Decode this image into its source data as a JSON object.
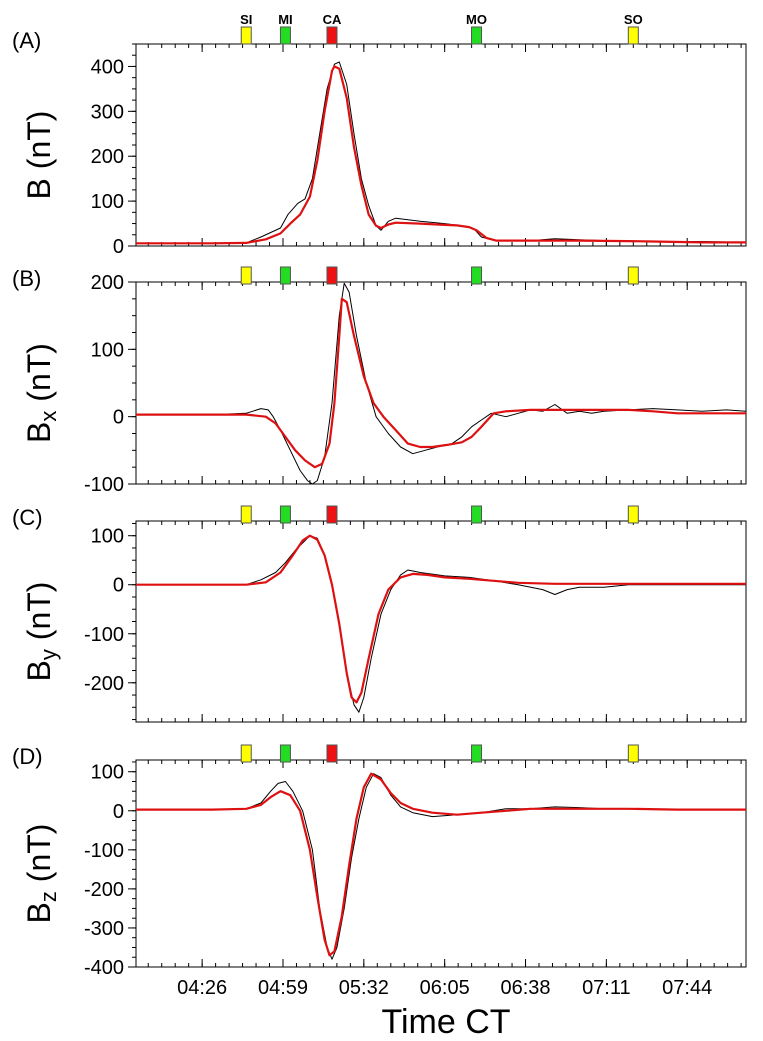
{
  "chart_data": {
    "type": "line",
    "xlabel": "Time CT",
    "x_tick_labels": [
      "04:26",
      "04:59",
      "05:32",
      "06:05",
      "06:38",
      "07:11",
      "07:44"
    ],
    "x_tick_minutes": [
      266,
      299,
      332,
      365,
      398,
      431,
      464
    ],
    "xlim_minutes": [
      239,
      488
    ],
    "markers": [
      {
        "label": "SI",
        "time_min": 284,
        "color": "#ffff00"
      },
      {
        "label": "MI",
        "time_min": 300,
        "color": "#22dd22"
      },
      {
        "label": "CA",
        "time_min": 319,
        "color": "#ee1111"
      },
      {
        "label": "MO",
        "time_min": 378,
        "color": "#22dd22"
      },
      {
        "label": "SO",
        "time_min": 442,
        "color": "#ffff00"
      }
    ],
    "series_styles": {
      "observed": "#000000",
      "model": "#dd1111"
    },
    "panels": [
      {
        "letter": "(A)",
        "ylabel_main": "B",
        "ylabel_sub": "",
        "ylabel_unit": " (nT)",
        "ylim": [
          0,
          450
        ],
        "yticks": [
          0,
          100,
          200,
          300,
          400
        ],
        "y_tick_labels": [
          "0",
          "100",
          "200",
          "300",
          "400"
        ],
        "observed": [
          [
            239,
            6
          ],
          [
            270,
            6
          ],
          [
            284,
            7
          ],
          [
            290,
            20
          ],
          [
            298,
            40
          ],
          [
            301,
            70
          ],
          [
            305,
            95
          ],
          [
            308,
            105
          ],
          [
            311,
            150
          ],
          [
            314,
            250
          ],
          [
            317,
            350
          ],
          [
            320,
            405
          ],
          [
            322,
            410
          ],
          [
            325,
            360
          ],
          [
            328,
            250
          ],
          [
            331,
            150
          ],
          [
            334,
            90
          ],
          [
            337,
            45
          ],
          [
            339,
            35
          ],
          [
            342,
            55
          ],
          [
            345,
            62
          ],
          [
            355,
            55
          ],
          [
            365,
            50
          ],
          [
            372,
            45
          ],
          [
            377,
            38
          ],
          [
            380,
            20
          ],
          [
            385,
            13
          ],
          [
            400,
            12
          ],
          [
            410,
            16
          ],
          [
            420,
            14
          ],
          [
            430,
            12
          ],
          [
            440,
            11
          ],
          [
            450,
            10
          ],
          [
            470,
            10
          ],
          [
            488,
            8
          ]
        ],
        "model": [
          [
            239,
            6
          ],
          [
            270,
            6
          ],
          [
            284,
            7
          ],
          [
            292,
            15
          ],
          [
            298,
            28
          ],
          [
            302,
            50
          ],
          [
            306,
            70
          ],
          [
            310,
            110
          ],
          [
            313,
            190
          ],
          [
            316,
            300
          ],
          [
            319,
            390
          ],
          [
            320,
            400
          ],
          [
            322,
            395
          ],
          [
            325,
            330
          ],
          [
            328,
            220
          ],
          [
            331,
            135
          ],
          [
            334,
            70
          ],
          [
            337,
            45
          ],
          [
            339,
            40
          ],
          [
            342,
            48
          ],
          [
            345,
            52
          ],
          [
            355,
            50
          ],
          [
            365,
            47
          ],
          [
            370,
            46
          ],
          [
            375,
            42
          ],
          [
            378,
            35
          ],
          [
            382,
            18
          ],
          [
            386,
            12
          ],
          [
            400,
            12
          ],
          [
            420,
            12
          ],
          [
            440,
            11
          ],
          [
            450,
            10
          ],
          [
            470,
            8
          ],
          [
            488,
            8
          ]
        ]
      },
      {
        "letter": "(B)",
        "ylabel_main": "B",
        "ylabel_sub": "x",
        "ylabel_unit": " (nT)",
        "ylim": [
          -100,
          200
        ],
        "yticks": [
          -100,
          0,
          100,
          200
        ],
        "y_tick_labels": [
          "-100",
          "0",
          "100",
          "200"
        ],
        "observed": [
          [
            239,
            3
          ],
          [
            270,
            3
          ],
          [
            284,
            5
          ],
          [
            290,
            12
          ],
          [
            293,
            10
          ],
          [
            295,
            0
          ],
          [
            298,
            -20
          ],
          [
            302,
            -50
          ],
          [
            306,
            -80
          ],
          [
            309,
            -95
          ],
          [
            311,
            -100
          ],
          [
            313,
            -95
          ],
          [
            316,
            -60
          ],
          [
            319,
            20
          ],
          [
            322,
            150
          ],
          [
            324,
            198
          ],
          [
            326,
            185
          ],
          [
            329,
            120
          ],
          [
            333,
            50
          ],
          [
            337,
            0
          ],
          [
            342,
            -25
          ],
          [
            347,
            -45
          ],
          [
            352,
            -55
          ],
          [
            357,
            -50
          ],
          [
            362,
            -45
          ],
          [
            368,
            -40
          ],
          [
            372,
            -30
          ],
          [
            376,
            -15
          ],
          [
            380,
            -5
          ],
          [
            384,
            5
          ],
          [
            390,
            0
          ],
          [
            395,
            5
          ],
          [
            400,
            10
          ],
          [
            405,
            8
          ],
          [
            410,
            18
          ],
          [
            415,
            5
          ],
          [
            420,
            8
          ],
          [
            425,
            5
          ],
          [
            430,
            8
          ],
          [
            440,
            10
          ],
          [
            450,
            12
          ],
          [
            460,
            10
          ],
          [
            470,
            8
          ],
          [
            480,
            10
          ],
          [
            488,
            8
          ]
        ],
        "model": [
          [
            239,
            3
          ],
          [
            270,
            3
          ],
          [
            284,
            3
          ],
          [
            292,
            0
          ],
          [
            296,
            -10
          ],
          [
            300,
            -30
          ],
          [
            304,
            -50
          ],
          [
            308,
            -65
          ],
          [
            312,
            -75
          ],
          [
            315,
            -70
          ],
          [
            318,
            -40
          ],
          [
            320,
            20
          ],
          [
            322,
            120
          ],
          [
            323,
            175
          ],
          [
            325,
            170
          ],
          [
            328,
            120
          ],
          [
            332,
            60
          ],
          [
            336,
            20
          ],
          [
            340,
            0
          ],
          [
            345,
            -20
          ],
          [
            350,
            -40
          ],
          [
            355,
            -45
          ],
          [
            360,
            -45
          ],
          [
            366,
            -42
          ],
          [
            372,
            -38
          ],
          [
            376,
            -30
          ],
          [
            380,
            -15
          ],
          [
            385,
            5
          ],
          [
            390,
            8
          ],
          [
            400,
            10
          ],
          [
            420,
            10
          ],
          [
            440,
            10
          ],
          [
            450,
            8
          ],
          [
            460,
            5
          ],
          [
            488,
            5
          ]
        ]
      },
      {
        "letter": "(C)",
        "ylabel_main": "B",
        "ylabel_sub": "y",
        "ylabel_unit": " (nT)",
        "ylim": [
          -280,
          130
        ],
        "yticks": [
          -200,
          -100,
          0,
          100
        ],
        "y_tick_labels": [
          "-200",
          "-100",
          "0",
          "100"
        ],
        "observed": [
          [
            239,
            0
          ],
          [
            250,
            0
          ],
          [
            270,
            0
          ],
          [
            284,
            0
          ],
          [
            290,
            10
          ],
          [
            296,
            25
          ],
          [
            300,
            45
          ],
          [
            304,
            70
          ],
          [
            308,
            90
          ],
          [
            310,
            100
          ],
          [
            313,
            95
          ],
          [
            316,
            60
          ],
          [
            319,
            0
          ],
          [
            322,
            -80
          ],
          [
            325,
            -180
          ],
          [
            328,
            -245
          ],
          [
            330,
            -260
          ],
          [
            332,
            -230
          ],
          [
            335,
            -150
          ],
          [
            339,
            -60
          ],
          [
            343,
            -10
          ],
          [
            347,
            20
          ],
          [
            350,
            30
          ],
          [
            355,
            25
          ],
          [
            365,
            18
          ],
          [
            375,
            15
          ],
          [
            385,
            8
          ],
          [
            395,
            0
          ],
          [
            405,
            -10
          ],
          [
            410,
            -20
          ],
          [
            415,
            -10
          ],
          [
            420,
            -5
          ],
          [
            430,
            -5
          ],
          [
            440,
            0
          ],
          [
            460,
            0
          ],
          [
            488,
            0
          ]
        ],
        "model": [
          [
            239,
            0
          ],
          [
            270,
            0
          ],
          [
            284,
            0
          ],
          [
            292,
            5
          ],
          [
            298,
            25
          ],
          [
            303,
            60
          ],
          [
            307,
            90
          ],
          [
            310,
            100
          ],
          [
            313,
            92
          ],
          [
            316,
            60
          ],
          [
            319,
            0
          ],
          [
            322,
            -80
          ],
          [
            325,
            -180
          ],
          [
            327,
            -230
          ],
          [
            329,
            -240
          ],
          [
            331,
            -220
          ],
          [
            334,
            -150
          ],
          [
            338,
            -60
          ],
          [
            342,
            -10
          ],
          [
            347,
            15
          ],
          [
            352,
            22
          ],
          [
            358,
            20
          ],
          [
            365,
            15
          ],
          [
            375,
            12
          ],
          [
            385,
            8
          ],
          [
            395,
            4
          ],
          [
            410,
            2
          ],
          [
            430,
            2
          ],
          [
            450,
            2
          ],
          [
            488,
            2
          ]
        ]
      },
      {
        "letter": "(D)",
        "ylabel_main": "B",
        "ylabel_sub": "z",
        "ylabel_unit": " (nT)",
        "ylim": [
          -400,
          130
        ],
        "yticks": [
          -400,
          -300,
          -200,
          -100,
          0,
          100
        ],
        "y_tick_labels": [
          "-400",
          "-300",
          "-200",
          "-100",
          "0",
          "100"
        ],
        "observed": [
          [
            239,
            3
          ],
          [
            270,
            3
          ],
          [
            284,
            5
          ],
          [
            290,
            20
          ],
          [
            294,
            50
          ],
          [
            297,
            70
          ],
          [
            300,
            75
          ],
          [
            303,
            50
          ],
          [
            307,
            0
          ],
          [
            311,
            -100
          ],
          [
            314,
            -250
          ],
          [
            317,
            -350
          ],
          [
            319,
            -380
          ],
          [
            321,
            -350
          ],
          [
            324,
            -250
          ],
          [
            327,
            -120
          ],
          [
            330,
            -20
          ],
          [
            333,
            60
          ],
          [
            336,
            95
          ],
          [
            339,
            85
          ],
          [
            343,
            40
          ],
          [
            347,
            10
          ],
          [
            352,
            -5
          ],
          [
            360,
            -15
          ],
          [
            370,
            -10
          ],
          [
            380,
            -5
          ],
          [
            390,
            5
          ],
          [
            400,
            5
          ],
          [
            410,
            10
          ],
          [
            420,
            8
          ],
          [
            430,
            5
          ],
          [
            440,
            5
          ],
          [
            460,
            3
          ],
          [
            488,
            3
          ]
        ],
        "model": [
          [
            239,
            3
          ],
          [
            270,
            3
          ],
          [
            284,
            5
          ],
          [
            290,
            15
          ],
          [
            294,
            35
          ],
          [
            298,
            50
          ],
          [
            302,
            40
          ],
          [
            306,
            0
          ],
          [
            310,
            -100
          ],
          [
            313,
            -220
          ],
          [
            316,
            -330
          ],
          [
            318,
            -370
          ],
          [
            320,
            -360
          ],
          [
            323,
            -270
          ],
          [
            326,
            -140
          ],
          [
            329,
            -20
          ],
          [
            332,
            60
          ],
          [
            335,
            95
          ],
          [
            339,
            80
          ],
          [
            343,
            45
          ],
          [
            347,
            20
          ],
          [
            352,
            5
          ],
          [
            360,
            -5
          ],
          [
            370,
            -10
          ],
          [
            380,
            -5
          ],
          [
            390,
            0
          ],
          [
            400,
            5
          ],
          [
            420,
            5
          ],
          [
            440,
            5
          ],
          [
            460,
            3
          ],
          [
            488,
            3
          ]
        ]
      }
    ]
  }
}
